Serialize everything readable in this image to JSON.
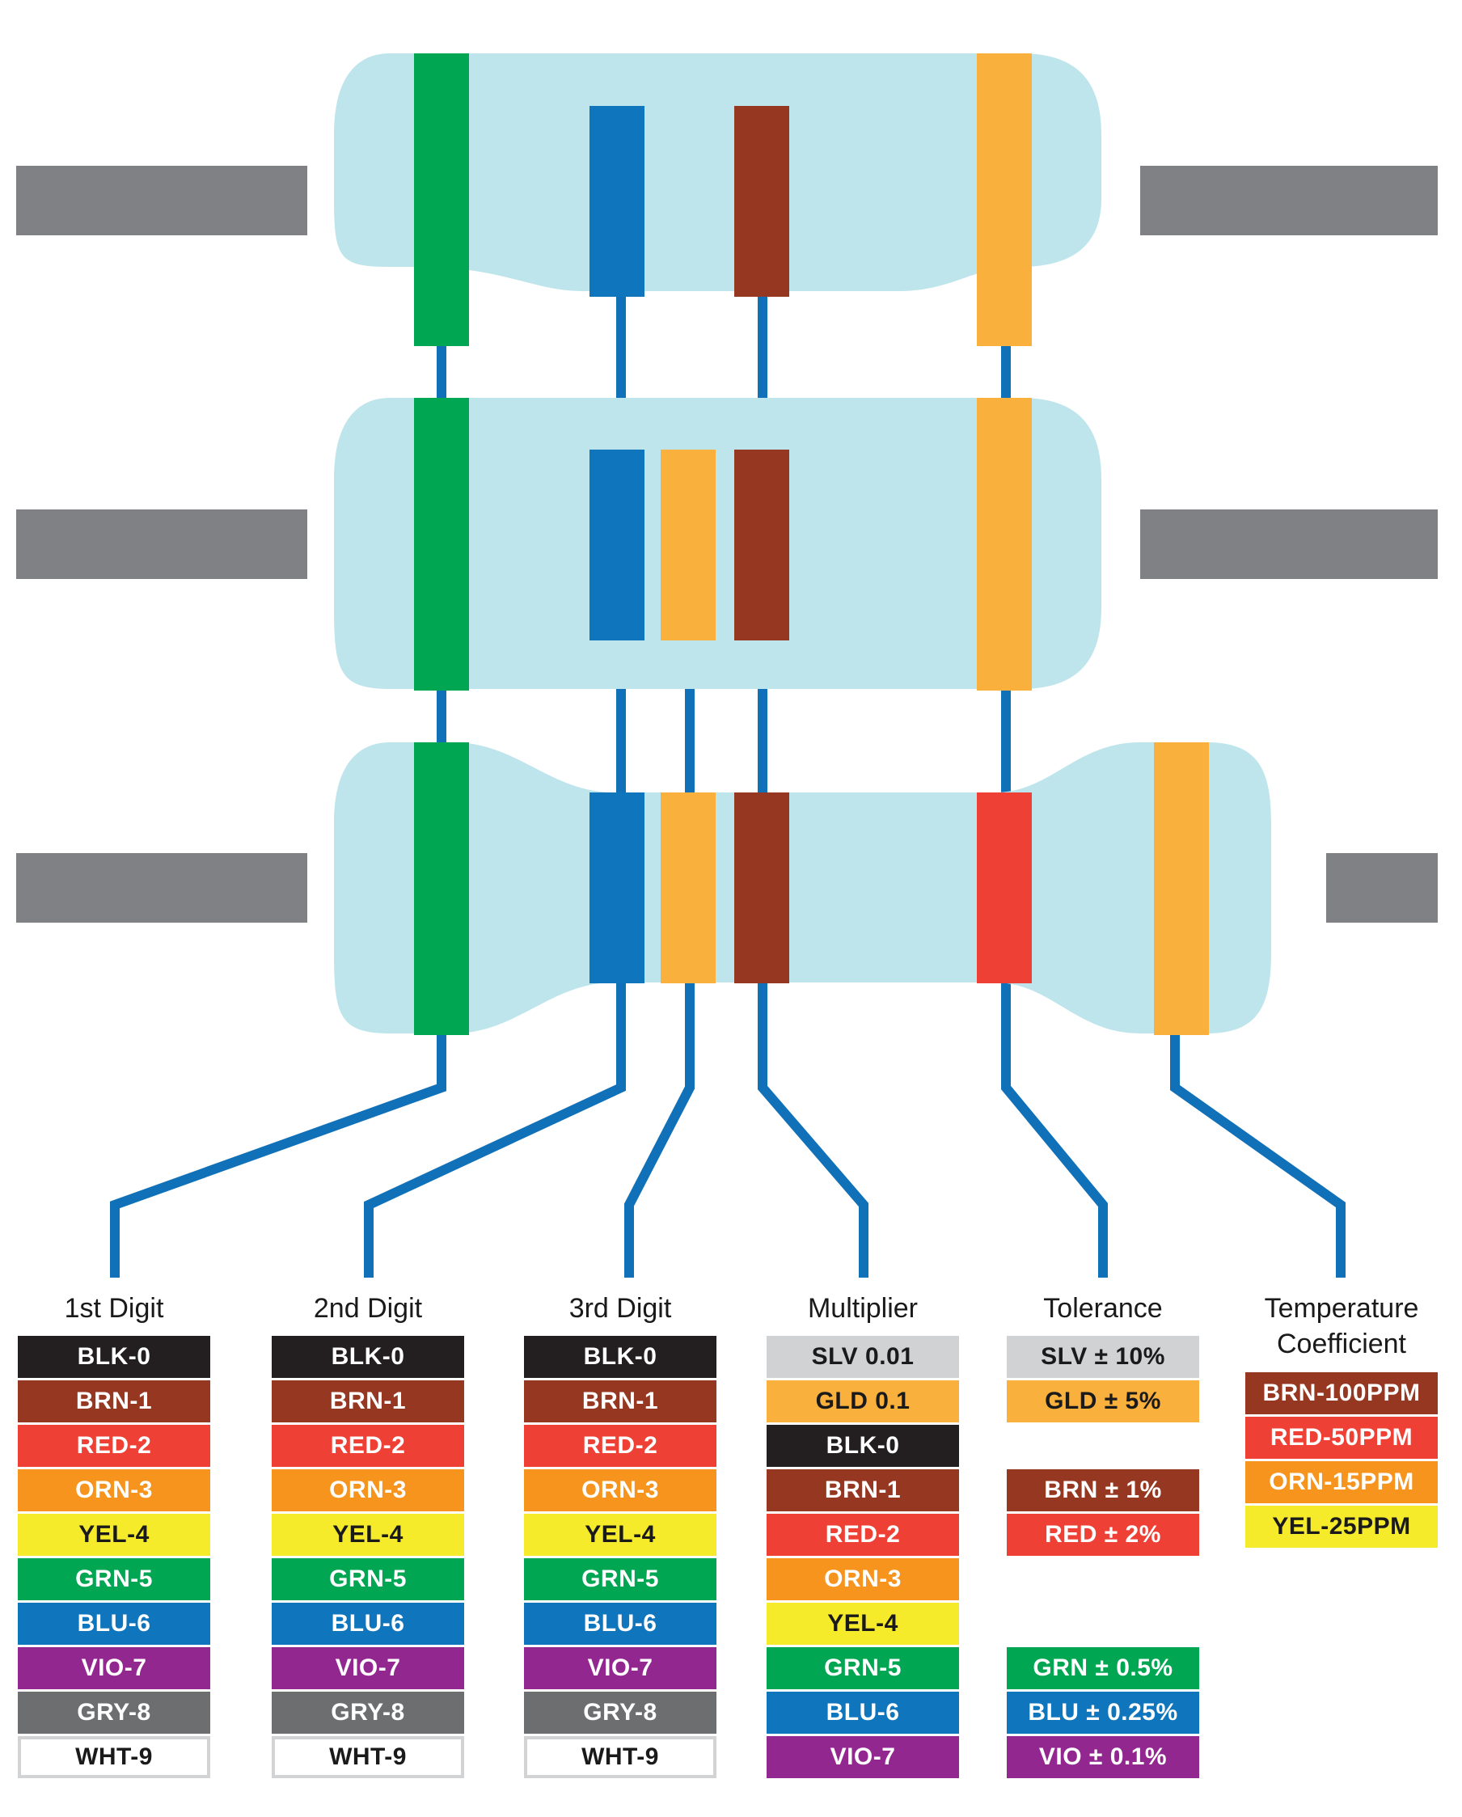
{
  "colors": {
    "body": "#bfe5ec",
    "lead": "#808184",
    "wire": "#1070b8",
    "band_green": "#00a651",
    "band_blue": "#0f75bc",
    "band_brown": "#963721",
    "band_orange_gold": "#f9b03c",
    "band_red": "#ee4035"
  },
  "columns": [
    {
      "key": "digit1",
      "title_lines": [
        "1st Digit"
      ],
      "swatches": [
        {
          "label": "BLK-0",
          "color": "#231f20",
          "text": "#ffffff"
        },
        {
          "label": "BRN-1",
          "color": "#963721",
          "text": "#ffffff"
        },
        {
          "label": "RED-2",
          "color": "#ee4035",
          "text": "#ffffff"
        },
        {
          "label": "ORN-3",
          "color": "#f7941d",
          "text": "#ffffff"
        },
        {
          "label": "YEL-4",
          "color": "#f6eb2b",
          "text": "#1a1a1a"
        },
        {
          "label": "GRN-5",
          "color": "#00a651",
          "text": "#ffffff"
        },
        {
          "label": "BLU-6",
          "color": "#0f75bc",
          "text": "#ffffff"
        },
        {
          "label": "VIO-7",
          "color": "#92278f",
          "text": "#ffffff"
        },
        {
          "label": "GRY-8",
          "color": "#6d6e70",
          "text": "#ffffff"
        },
        {
          "label": "WHT-9",
          "color": "#ffffff",
          "text": "#1a1a1a",
          "border": "#d2d3d5"
        }
      ]
    },
    {
      "key": "digit2",
      "title_lines": [
        "2nd Digit"
      ],
      "swatches": [
        {
          "label": "BLK-0",
          "color": "#231f20",
          "text": "#ffffff"
        },
        {
          "label": "BRN-1",
          "color": "#963721",
          "text": "#ffffff"
        },
        {
          "label": "RED-2",
          "color": "#ee4035",
          "text": "#ffffff"
        },
        {
          "label": "ORN-3",
          "color": "#f7941d",
          "text": "#ffffff"
        },
        {
          "label": "YEL-4",
          "color": "#f6eb2b",
          "text": "#1a1a1a"
        },
        {
          "label": "GRN-5",
          "color": "#00a651",
          "text": "#ffffff"
        },
        {
          "label": "BLU-6",
          "color": "#0f75bc",
          "text": "#ffffff"
        },
        {
          "label": "VIO-7",
          "color": "#92278f",
          "text": "#ffffff"
        },
        {
          "label": "GRY-8",
          "color": "#6d6e70",
          "text": "#ffffff"
        },
        {
          "label": "WHT-9",
          "color": "#ffffff",
          "text": "#1a1a1a",
          "border": "#d2d3d5"
        }
      ]
    },
    {
      "key": "digit3",
      "title_lines": [
        "3rd Digit"
      ],
      "swatches": [
        {
          "label": "BLK-0",
          "color": "#231f20",
          "text": "#ffffff"
        },
        {
          "label": "BRN-1",
          "color": "#963721",
          "text": "#ffffff"
        },
        {
          "label": "RED-2",
          "color": "#ee4035",
          "text": "#ffffff"
        },
        {
          "label": "ORN-3",
          "color": "#f7941d",
          "text": "#ffffff"
        },
        {
          "label": "YEL-4",
          "color": "#f6eb2b",
          "text": "#1a1a1a"
        },
        {
          "label": "GRN-5",
          "color": "#00a651",
          "text": "#ffffff"
        },
        {
          "label": "BLU-6",
          "color": "#0f75bc",
          "text": "#ffffff"
        },
        {
          "label": "VIO-7",
          "color": "#92278f",
          "text": "#ffffff"
        },
        {
          "label": "GRY-8",
          "color": "#6d6e70",
          "text": "#ffffff"
        },
        {
          "label": "WHT-9",
          "color": "#ffffff",
          "text": "#1a1a1a",
          "border": "#d2d3d5"
        }
      ]
    },
    {
      "key": "multiplier",
      "title_lines": [
        "Multiplier"
      ],
      "swatches": [
        {
          "label": "SLV 0.01",
          "color": "#d1d2d4",
          "text": "#1a1a1a"
        },
        {
          "label": "GLD 0.1",
          "color": "#f9b03c",
          "text": "#1a1a1a"
        },
        {
          "label": "BLK-0",
          "color": "#231f20",
          "text": "#ffffff"
        },
        {
          "label": "BRN-1",
          "color": "#963721",
          "text": "#ffffff"
        },
        {
          "label": "RED-2",
          "color": "#ee4035",
          "text": "#ffffff"
        },
        {
          "label": "ORN-3",
          "color": "#f7941d",
          "text": "#ffffff"
        },
        {
          "label": "YEL-4",
          "color": "#f6eb2b",
          "text": "#1a1a1a"
        },
        {
          "label": "GRN-5",
          "color": "#00a651",
          "text": "#ffffff"
        },
        {
          "label": "BLU-6",
          "color": "#0f75bc",
          "text": "#ffffff"
        },
        {
          "label": "VIO-7",
          "color": "#92278f",
          "text": "#ffffff"
        }
      ]
    },
    {
      "key": "tolerance",
      "title_lines": [
        "Tolerance"
      ],
      "swatches": [
        {
          "label": "SLV ± 10%",
          "color": "#d1d2d4",
          "text": "#1a1a1a"
        },
        {
          "label": "GLD ± 5%",
          "color": "#f9b03c",
          "text": "#1a1a1a"
        },
        {
          "label": "BRN ± 1%",
          "color": "#963721",
          "text": "#ffffff"
        },
        {
          "label": "RED ± 2%",
          "color": "#ee4035",
          "text": "#ffffff"
        },
        {
          "label": "GRN ± 0.5%",
          "color": "#00a651",
          "text": "#ffffff"
        },
        {
          "label": "BLU ± 0.25%",
          "color": "#0f75bc",
          "text": "#ffffff"
        },
        {
          "label": "VIO ± 0.1%",
          "color": "#92278f",
          "text": "#ffffff"
        }
      ]
    },
    {
      "key": "tempco",
      "title_lines": [
        "Temperature",
        "Coefficient"
      ],
      "swatches": [
        {
          "label": "BRN-100PPM",
          "color": "#963721",
          "text": "#ffffff"
        },
        {
          "label": "RED-50PPM",
          "color": "#ee4035",
          "text": "#ffffff"
        },
        {
          "label": "ORN-15PPM",
          "color": "#f7941d",
          "text": "#ffffff"
        },
        {
          "label": "YEL-25PPM",
          "color": "#f6eb2b",
          "text": "#1a1a1a"
        }
      ]
    }
  ]
}
